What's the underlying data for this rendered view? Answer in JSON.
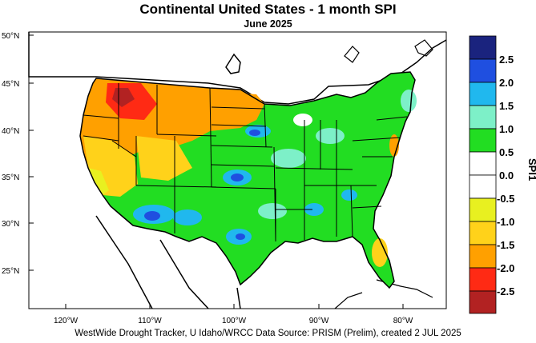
{
  "title": "Continental United States - 1 month SPI",
  "subtitle": "June 2025",
  "caption": "WestWide Drought Tracker, U Idaho/WRCC Data Source: PRISM (Prelim), created  2 JUL 2025",
  "map": {
    "lat_labels": [
      "50°N",
      "45°N",
      "40°N",
      "35°N",
      "30°N",
      "25°N"
    ],
    "lon_labels": [
      "120°W",
      "110°W",
      "100°W",
      "90°W",
      "80°W"
    ]
  },
  "colorbar": {
    "unit": "SPI1",
    "labels": [
      "2.5",
      "2.0",
      "1.5",
      "1.0",
      "0.5",
      "0.0",
      "-0.5",
      "-1.0",
      "-1.5",
      "-2.0",
      "-2.5"
    ],
    "colors": [
      "#1a237e",
      "#1f4fe0",
      "#20b8ee",
      "#7df0c8",
      "#22dd22",
      "#ffffff",
      "#ffffff",
      "#e8f020",
      "#ffd21a",
      "#ffa000",
      "#ff2a14",
      "#b22222"
    ]
  },
  "spi_colors": {
    "very_wet": "#1a237e",
    "wet_2": "#1f4fe0",
    "wet_15": "#20b8ee",
    "wet_1": "#7df0c8",
    "wet_05": "#22dd22",
    "neutral": "#ffffff",
    "dry_05": "#e8f020",
    "dry_1": "#ffd21a",
    "dry_15": "#ffa000",
    "dry_2": "#ff2a14",
    "very_dry": "#b22222"
  }
}
